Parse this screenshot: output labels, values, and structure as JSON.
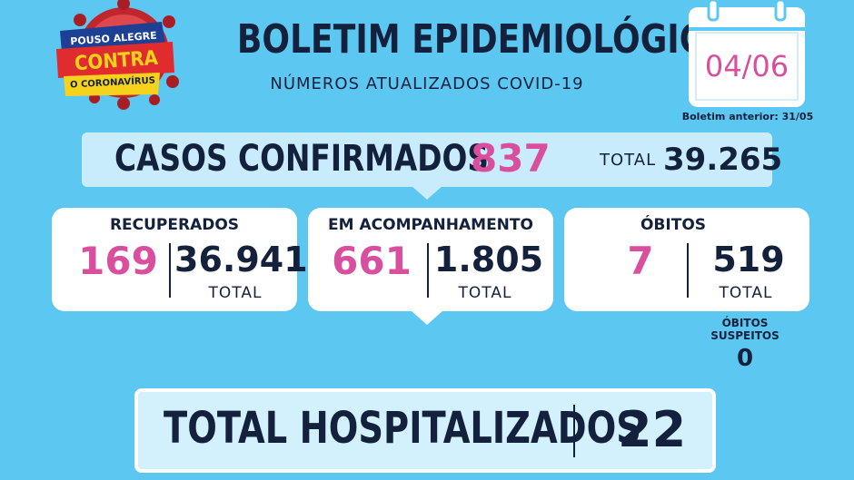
{
  "logo": {
    "line1": "POUSO ALEGRE",
    "line2": "CONTRA",
    "line3": "O CORONAVÍRUS"
  },
  "header": {
    "title": "BOLETIM EPIDEMIOLÓGICO",
    "subtitle": "NÚMEROS ATUALIZADOS COVID-19"
  },
  "calendar": {
    "date": "04/06",
    "previous": "Boletim anterior: 31/05"
  },
  "confirmed": {
    "label": "CASOS CONFIRMADOS",
    "new": "837",
    "total_label": "TOTAL",
    "total": "39.265"
  },
  "cards": {
    "recovered": {
      "title": "RECUPERADOS",
      "new": "169",
      "total": "36.941",
      "total_label": "TOTAL"
    },
    "monitoring": {
      "title": "EM ACOMPANHAMENTO",
      "new": "661",
      "total": "1.805",
      "total_label": "TOTAL"
    },
    "deaths": {
      "title": "ÓBITOS",
      "new": "7",
      "total": "519",
      "total_label": "TOTAL"
    }
  },
  "suspected": {
    "label_line1": "ÓBITOS",
    "label_line2": "SUSPEITOS",
    "value": "0"
  },
  "hospitalized": {
    "label": "TOTAL HOSPITALIZADOS",
    "value": "22"
  },
  "colors": {
    "background": "#5cc8f2",
    "navy": "#14213d",
    "pink": "#d94f9e",
    "banner": "#c8ecfb"
  }
}
